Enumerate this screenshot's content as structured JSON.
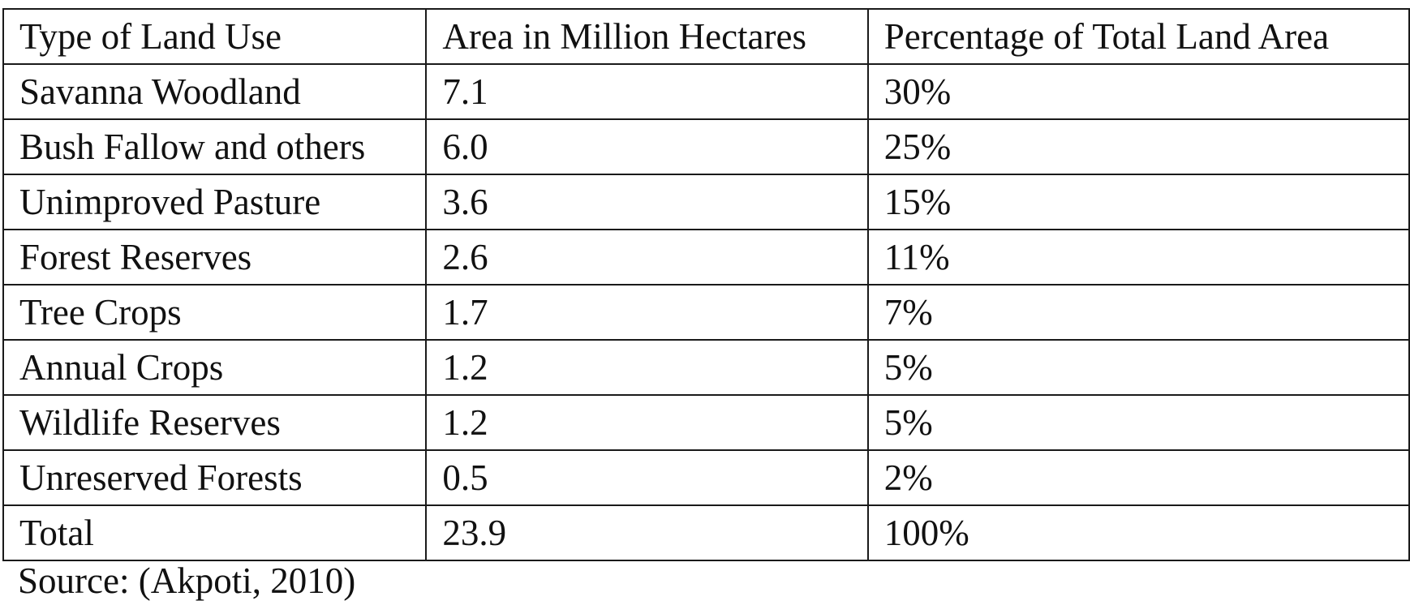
{
  "table": {
    "headers": [
      "Type of Land Use",
      "Area in Million Hectares",
      "Percentage of Total Land Area"
    ],
    "rows": [
      [
        "Savanna Woodland",
        "7.1",
        "30%"
      ],
      [
        "Bush Fallow and others",
        "6.0",
        "25%"
      ],
      [
        "Unimproved Pasture",
        "3.6",
        "15%"
      ],
      [
        "Forest Reserves",
        "2.6",
        "11%"
      ],
      [
        "Tree Crops",
        "1.7",
        "7%"
      ],
      [
        "Annual Crops",
        "1.2",
        "5%"
      ],
      [
        "Wildlife Reserves",
        "1.2",
        "5%"
      ],
      [
        "Unreserved Forests",
        "0.5",
        "2%"
      ],
      [
        "Total",
        "23.9",
        "100%"
      ]
    ]
  },
  "source": "Source: (Akpoti, 2010)"
}
